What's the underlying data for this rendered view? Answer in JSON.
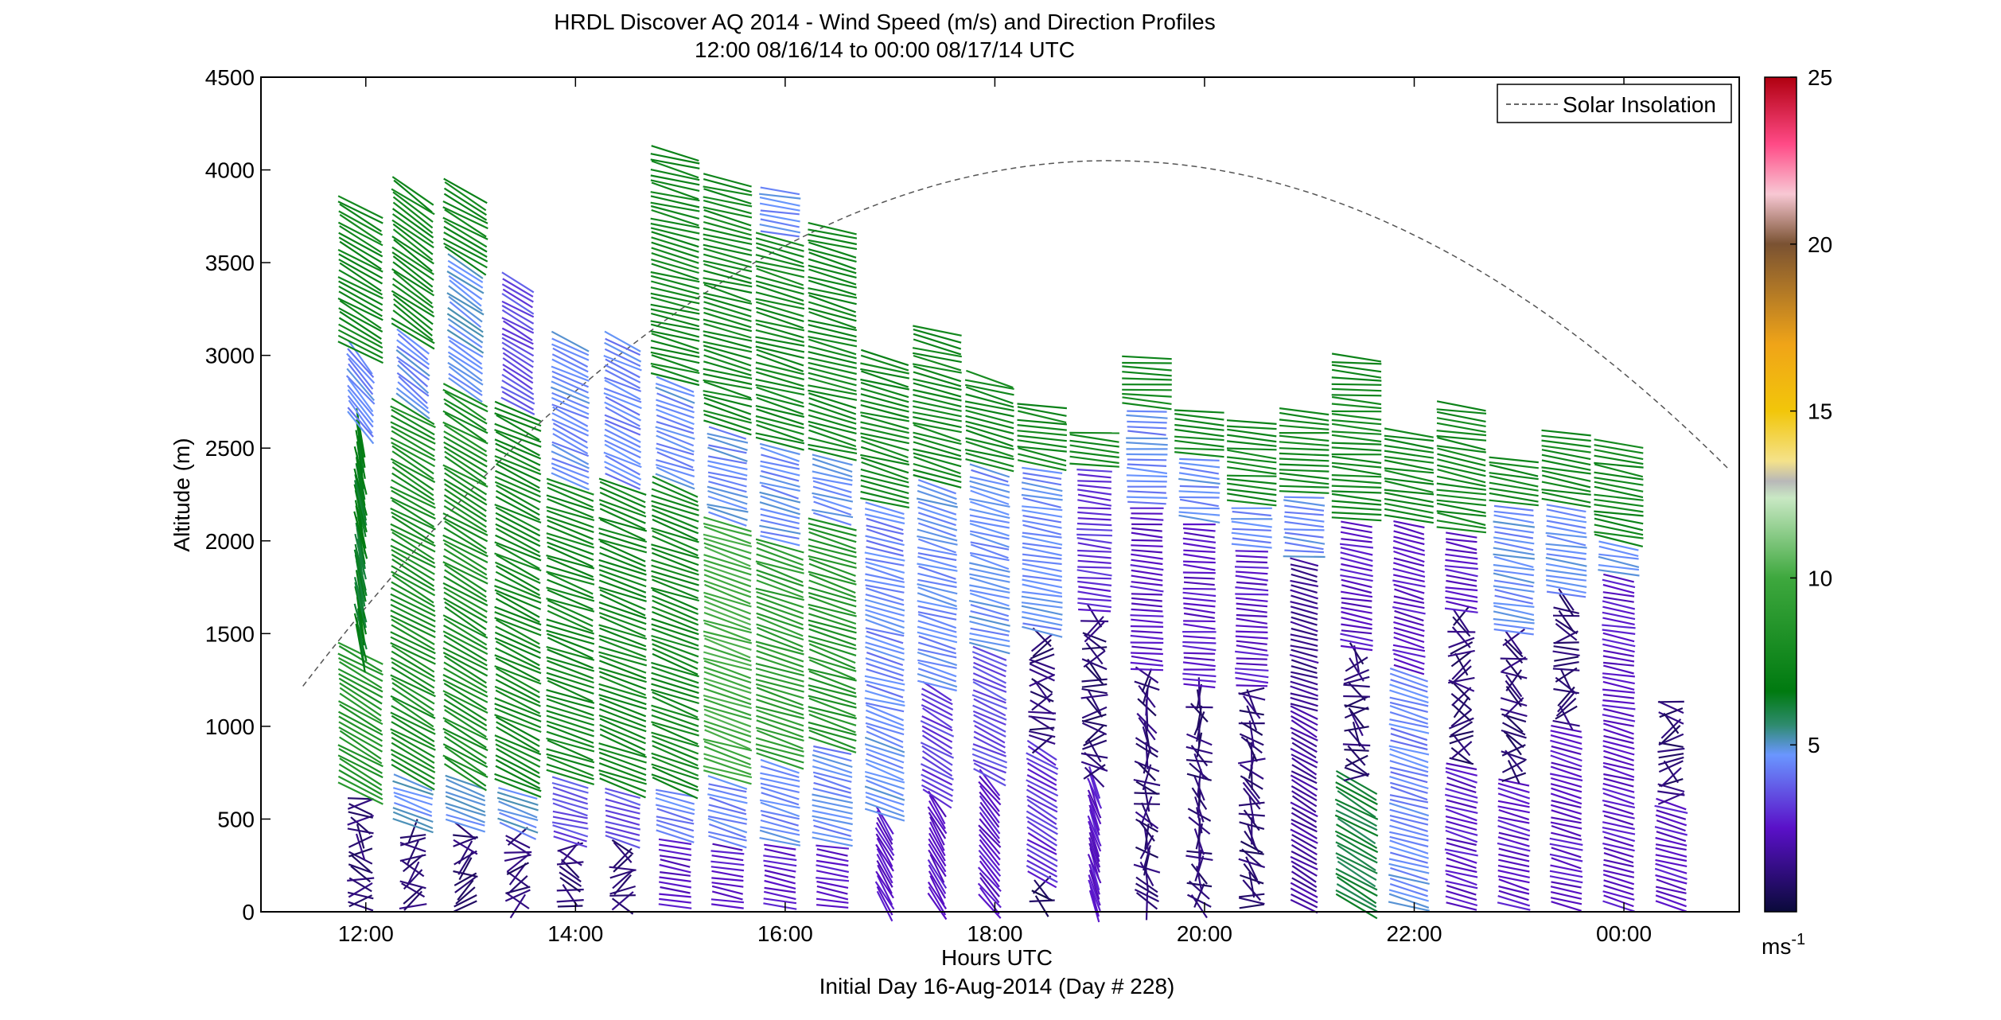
{
  "chart_data": {
    "type": "wind-barb-profiles",
    "title": "HRDL Discover AQ 2014 - Wind Speed (m/s) and Direction Profiles",
    "subtitle": "12:00 08/16/14 to 00:00 08/17/14  UTC",
    "xlabel": "Hours UTC",
    "xlabel2": "Initial Day 16-Aug-2014 (Day # 228)",
    "ylabel": "Altitude (m)",
    "xlim_hours": [
      11.0,
      25.1
    ],
    "ylim": [
      0,
      4500
    ],
    "x_ticks": [
      {
        "hour": 12,
        "label": "12:00"
      },
      {
        "hour": 14,
        "label": "14:00"
      },
      {
        "hour": 16,
        "label": "16:00"
      },
      {
        "hour": 18,
        "label": "18:00"
      },
      {
        "hour": 20,
        "label": "20:00"
      },
      {
        "hour": 22,
        "label": "22:00"
      },
      {
        "hour": 24,
        "label": "00:00"
      }
    ],
    "y_ticks": [
      0,
      500,
      1000,
      1500,
      2000,
      2500,
      3000,
      3500,
      4000,
      4500
    ],
    "legend": {
      "label": "Solar Insolation",
      "placement": "top-right",
      "style": "dashed"
    },
    "solar_insolation": {
      "start_hour": 11.4,
      "end_hour": 25.0,
      "peak_hour": 19.1,
      "peak_altitude": 4050,
      "edge_altitude": 970
    },
    "colorbar": {
      "min": 0,
      "max": 25,
      "ticks": [
        5,
        10,
        15,
        20,
        25
      ],
      "unit_label": "ms",
      "unit_exponent": "-1",
      "stops": [
        {
          "v": 0,
          "c": "#0a0a3a"
        },
        {
          "v": 2.5,
          "c": "#5a10c8"
        },
        {
          "v": 4.7,
          "c": "#6a96ff"
        },
        {
          "v": 5.6,
          "c": "#2e8b6e"
        },
        {
          "v": 6.6,
          "c": "#007a10"
        },
        {
          "v": 10,
          "c": "#3ea83e"
        },
        {
          "v": 12.4,
          "c": "#c9e8c4"
        },
        {
          "v": 12.9,
          "c": "#b8b8b8"
        },
        {
          "v": 13.5,
          "c": "#f4e28a"
        },
        {
          "v": 15,
          "c": "#f2c60a"
        },
        {
          "v": 17,
          "c": "#f0a418"
        },
        {
          "v": 20,
          "c": "#7a5232"
        },
        {
          "v": 21.5,
          "c": "#f8c8d4"
        },
        {
          "v": 23,
          "c": "#ff4a86"
        },
        {
          "v": 25,
          "c": "#b00010"
        }
      ]
    },
    "profiles": [
      {
        "t": 11.95,
        "top": 3800,
        "bands": [
          {
            "z0": 0,
            "z1": 620,
            "s": 1.0,
            "d": 290
          },
          {
            "z0": 620,
            "z1": 1400,
            "s": 8.5,
            "d": 300
          },
          {
            "z0": 1400,
            "z1": 2600,
            "s": 6.5,
            "d": 350
          },
          {
            "z0": 2600,
            "z1": 3000,
            "s": 4.5,
            "d": 320
          },
          {
            "z0": 3000,
            "z1": 3800,
            "s": 7.5,
            "d": 300
          }
        ]
      },
      {
        "t": 12.45,
        "top": 3900,
        "bands": [
          {
            "z0": 0,
            "z1": 450,
            "s": 1.0,
            "d": 250
          },
          {
            "z0": 450,
            "z1": 700,
            "s": 4.8,
            "d": 290
          },
          {
            "z0": 700,
            "z1": 2700,
            "s": 8.0,
            "d": 300
          },
          {
            "z0": 2700,
            "z1": 3100,
            "s": 4.6,
            "d": 310
          },
          {
            "z0": 3100,
            "z1": 3900,
            "s": 7.5,
            "d": 305
          }
        ]
      },
      {
        "t": 12.95,
        "top": 3900,
        "bands": [
          {
            "z0": 0,
            "z1": 450,
            "s": 1.0,
            "d": 260
          },
          {
            "z0": 450,
            "z1": 700,
            "s": 4.8,
            "d": 290
          },
          {
            "z0": 700,
            "z1": 2800,
            "s": 8.0,
            "d": 300
          },
          {
            "z0": 2800,
            "z1": 3500,
            "s": 4.8,
            "d": 305
          },
          {
            "z0": 3500,
            "z1": 3900,
            "s": 7.5,
            "d": 300
          }
        ]
      },
      {
        "t": 13.45,
        "top": 3400,
        "bands": [
          {
            "z0": 0,
            "z1": 420,
            "s": 1.0,
            "d": 260
          },
          {
            "z0": 420,
            "z1": 650,
            "s": 4.8,
            "d": 290
          },
          {
            "z0": 650,
            "z1": 2700,
            "s": 7.5,
            "d": 295
          },
          {
            "z0": 2700,
            "z1": 3400,
            "s": 3.5,
            "d": 300
          }
        ]
      },
      {
        "t": 13.95,
        "top": 3100,
        "bands": [
          {
            "z0": 0,
            "z1": 350,
            "s": 1.0,
            "d": 270
          },
          {
            "z0": 350,
            "z1": 700,
            "s": 3.5,
            "d": 285
          },
          {
            "z0": 700,
            "z1": 2300,
            "s": 7.5,
            "d": 290
          },
          {
            "z0": 2300,
            "z1": 3100,
            "s": 4.6,
            "d": 295
          }
        ]
      },
      {
        "t": 14.45,
        "top": 3100,
        "bands": [
          {
            "z0": 0,
            "z1": 350,
            "s": 1.0,
            "d": 270
          },
          {
            "z0": 350,
            "z1": 650,
            "s": 3.5,
            "d": 285
          },
          {
            "z0": 650,
            "z1": 2300,
            "s": 7.5,
            "d": 290
          },
          {
            "z0": 2300,
            "z1": 3100,
            "s": 4.4,
            "d": 295
          }
        ]
      },
      {
        "t": 14.95,
        "top": 4100,
        "bands": [
          {
            "z0": 0,
            "z1": 400,
            "s": 2.5,
            "d": 280
          },
          {
            "z0": 400,
            "z1": 650,
            "s": 4.4,
            "d": 285
          },
          {
            "z0": 650,
            "z1": 2300,
            "s": 7.5,
            "d": 290
          },
          {
            "z0": 2300,
            "z1": 2850,
            "s": 4.6,
            "d": 290
          },
          {
            "z0": 2850,
            "z1": 4100,
            "s": 7.5,
            "d": 285
          }
        ]
      },
      {
        "t": 15.45,
        "top": 3950,
        "bands": [
          {
            "z0": 0,
            "z1": 350,
            "s": 2.5,
            "d": 280
          },
          {
            "z0": 350,
            "z1": 700,
            "s": 4.5,
            "d": 285
          },
          {
            "z0": 700,
            "z1": 2100,
            "s": 10.0,
            "d": 288
          },
          {
            "z0": 2100,
            "z1": 2600,
            "s": 4.6,
            "d": 285
          },
          {
            "z0": 2600,
            "z1": 3950,
            "s": 7.5,
            "d": 285
          }
        ]
      },
      {
        "t": 15.95,
        "top": 3900,
        "bands": [
          {
            "z0": 0,
            "z1": 350,
            "s": 2.5,
            "d": 280
          },
          {
            "z0": 350,
            "z1": 800,
            "s": 4.5,
            "d": 285
          },
          {
            "z0": 800,
            "z1": 2000,
            "s": 9.0,
            "d": 288
          },
          {
            "z0": 2000,
            "z1": 2500,
            "s": 4.6,
            "d": 285
          },
          {
            "z0": 2500,
            "z1": 3650,
            "s": 7.5,
            "d": 285
          },
          {
            "z0": 3650,
            "z1": 3900,
            "s": 4.6,
            "d": 280
          }
        ]
      },
      {
        "t": 16.45,
        "top": 3700,
        "bands": [
          {
            "z0": 0,
            "z1": 350,
            "s": 2.5,
            "d": 280
          },
          {
            "z0": 350,
            "z1": 900,
            "s": 4.5,
            "d": 285
          },
          {
            "z0": 900,
            "z1": 2100,
            "s": 8.5,
            "d": 288
          },
          {
            "z0": 2100,
            "z1": 2450,
            "s": 4.6,
            "d": 285
          },
          {
            "z0": 2450,
            "z1": 3700,
            "s": 7.5,
            "d": 285
          }
        ]
      },
      {
        "t": 16.95,
        "top": 3000,
        "bands": [
          {
            "z0": 0,
            "z1": 500,
            "s": 2.5,
            "d": 330
          },
          {
            "z0": 500,
            "z1": 1100,
            "s": 4.6,
            "d": 290
          },
          {
            "z0": 1100,
            "z1": 2200,
            "s": 4.4,
            "d": 285
          },
          {
            "z0": 2200,
            "z1": 3000,
            "s": 7.5,
            "d": 285
          }
        ]
      },
      {
        "t": 17.45,
        "top": 3150,
        "bands": [
          {
            "z0": 0,
            "z1": 600,
            "s": 2.5,
            "d": 330
          },
          {
            "z0": 600,
            "z1": 1200,
            "s": 3.2,
            "d": 300
          },
          {
            "z0": 1200,
            "z1": 2300,
            "s": 4.6,
            "d": 285
          },
          {
            "z0": 2300,
            "z1": 3150,
            "s": 7.5,
            "d": 285
          }
        ]
      },
      {
        "t": 17.95,
        "top": 2900,
        "bands": [
          {
            "z0": 0,
            "z1": 700,
            "s": 2.5,
            "d": 320
          },
          {
            "z0": 700,
            "z1": 1400,
            "s": 3.5,
            "d": 295
          },
          {
            "z0": 1400,
            "z1": 2400,
            "s": 4.6,
            "d": 285
          },
          {
            "z0": 2400,
            "z1": 2900,
            "s": 7.5,
            "d": 285
          }
        ]
      },
      {
        "t": 18.45,
        "top": 2750,
        "bands": [
          {
            "z0": 0,
            "z1": 150,
            "s": 0.5,
            "d": 270
          },
          {
            "z0": 150,
            "z1": 900,
            "s": 3.0,
            "d": 300
          },
          {
            "z0": 900,
            "z1": 1500,
            "s": 1.0,
            "d": 285
          },
          {
            "z0": 1500,
            "z1": 2400,
            "s": 4.6,
            "d": 280
          },
          {
            "z0": 2400,
            "z1": 2750,
            "s": 7.5,
            "d": 280
          }
        ]
      },
      {
        "t": 18.95,
        "top": 2600,
        "bands": [
          {
            "z0": 0,
            "z1": 700,
            "s": 2.5,
            "d": 340
          },
          {
            "z0": 700,
            "z1": 1600,
            "s": 1.0,
            "d": 275
          },
          {
            "z0": 1600,
            "z1": 2400,
            "s": 3.0,
            "d": 275
          },
          {
            "z0": 2400,
            "z1": 2600,
            "s": 7.5,
            "d": 275
          }
        ]
      },
      {
        "t": 19.45,
        "top": 3000,
        "bands": [
          {
            "z0": 0,
            "z1": 1300,
            "s": 1.0,
            "d": 330
          },
          {
            "z0": 1300,
            "z1": 2200,
            "s": 2.5,
            "d": 275
          },
          {
            "z0": 2200,
            "z1": 2700,
            "s": 4.5,
            "d": 275
          },
          {
            "z0": 2700,
            "z1": 3000,
            "s": 7.5,
            "d": 275
          }
        ]
      },
      {
        "t": 19.95,
        "top": 2700,
        "bands": [
          {
            "z0": 0,
            "z1": 1200,
            "s": 1.0,
            "d": 330
          },
          {
            "z0": 1200,
            "z1": 2100,
            "s": 2.5,
            "d": 275
          },
          {
            "z0": 2100,
            "z1": 2450,
            "s": 4.6,
            "d": 275
          },
          {
            "z0": 2450,
            "z1": 2700,
            "s": 7.5,
            "d": 275
          }
        ]
      },
      {
        "t": 20.45,
        "top": 2650,
        "bands": [
          {
            "z0": 0,
            "z1": 1200,
            "s": 1.0,
            "d": 315
          },
          {
            "z0": 1200,
            "z1": 1950,
            "s": 2.5,
            "d": 275
          },
          {
            "z0": 1950,
            "z1": 2200,
            "s": 4.6,
            "d": 275
          },
          {
            "z0": 2200,
            "z1": 2650,
            "s": 7.5,
            "d": 275
          }
        ]
      },
      {
        "t": 20.95,
        "top": 2700,
        "bands": [
          {
            "z0": 0,
            "z1": 1100,
            "s": 1.8,
            "d": 300
          },
          {
            "z0": 1100,
            "z1": 1900,
            "s": 1.5,
            "d": 285
          },
          {
            "z0": 1900,
            "z1": 2250,
            "s": 4.6,
            "d": 275
          },
          {
            "z0": 2250,
            "z1": 2700,
            "s": 7.5,
            "d": 275
          }
        ]
      },
      {
        "t": 21.45,
        "top": 3000,
        "bands": [
          {
            "z0": 0,
            "z1": 700,
            "s": 6.0,
            "d": 300
          },
          {
            "z0": 700,
            "z1": 1400,
            "s": 1.0,
            "d": 290
          },
          {
            "z0": 1400,
            "z1": 2100,
            "s": 2.5,
            "d": 280
          },
          {
            "z0": 2100,
            "z1": 3000,
            "s": 7.5,
            "d": 275
          }
        ]
      },
      {
        "t": 21.95,
        "top": 2600,
        "bands": [
          {
            "z0": 0,
            "z1": 500,
            "s": 4.6,
            "d": 285
          },
          {
            "z0": 500,
            "z1": 1300,
            "s": 4.4,
            "d": 285
          },
          {
            "z0": 1300,
            "z1": 2100,
            "s": 2.5,
            "d": 285
          },
          {
            "z0": 2100,
            "z1": 2600,
            "s": 7.5,
            "d": 280
          }
        ]
      },
      {
        "t": 22.45,
        "top": 2750,
        "bands": [
          {
            "z0": 0,
            "z1": 800,
            "s": 2.5,
            "d": 285
          },
          {
            "z0": 800,
            "z1": 1600,
            "s": 1.0,
            "d": 275
          },
          {
            "z0": 1600,
            "z1": 2050,
            "s": 2.5,
            "d": 280
          },
          {
            "z0": 2050,
            "z1": 2750,
            "s": 7.5,
            "d": 280
          }
        ]
      },
      {
        "t": 22.95,
        "top": 2450,
        "bands": [
          {
            "z0": 0,
            "z1": 700,
            "s": 2.5,
            "d": 285
          },
          {
            "z0": 700,
            "z1": 1500,
            "s": 1.0,
            "d": 275
          },
          {
            "z0": 1500,
            "z1": 2200,
            "s": 4.6,
            "d": 280
          },
          {
            "z0": 2200,
            "z1": 2450,
            "s": 7.5,
            "d": 280
          }
        ]
      },
      {
        "t": 23.45,
        "top": 2600,
        "bands": [
          {
            "z0": 0,
            "z1": 1000,
            "s": 2.5,
            "d": 285
          },
          {
            "z0": 1000,
            "z1": 1700,
            "s": 1.0,
            "d": 275
          },
          {
            "z0": 1700,
            "z1": 2200,
            "s": 4.6,
            "d": 280
          },
          {
            "z0": 2200,
            "z1": 2600,
            "s": 7.5,
            "d": 280
          }
        ]
      },
      {
        "t": 23.95,
        "top": 2550,
        "bands": [
          {
            "z0": 0,
            "z1": 1100,
            "s": 2.5,
            "d": 285
          },
          {
            "z0": 1100,
            "z1": 1800,
            "s": 2.5,
            "d": 280
          },
          {
            "z0": 1800,
            "z1": 2000,
            "s": 4.6,
            "d": 280
          },
          {
            "z0": 2000,
            "z1": 2550,
            "s": 7.5,
            "d": 280
          }
        ]
      },
      {
        "t": 24.45,
        "top": 1150,
        "bands": [
          {
            "z0": 0,
            "z1": 600,
            "s": 2.5,
            "d": 285
          },
          {
            "z0": 600,
            "z1": 1150,
            "s": 1.0,
            "d": 280
          }
        ]
      }
    ]
  }
}
